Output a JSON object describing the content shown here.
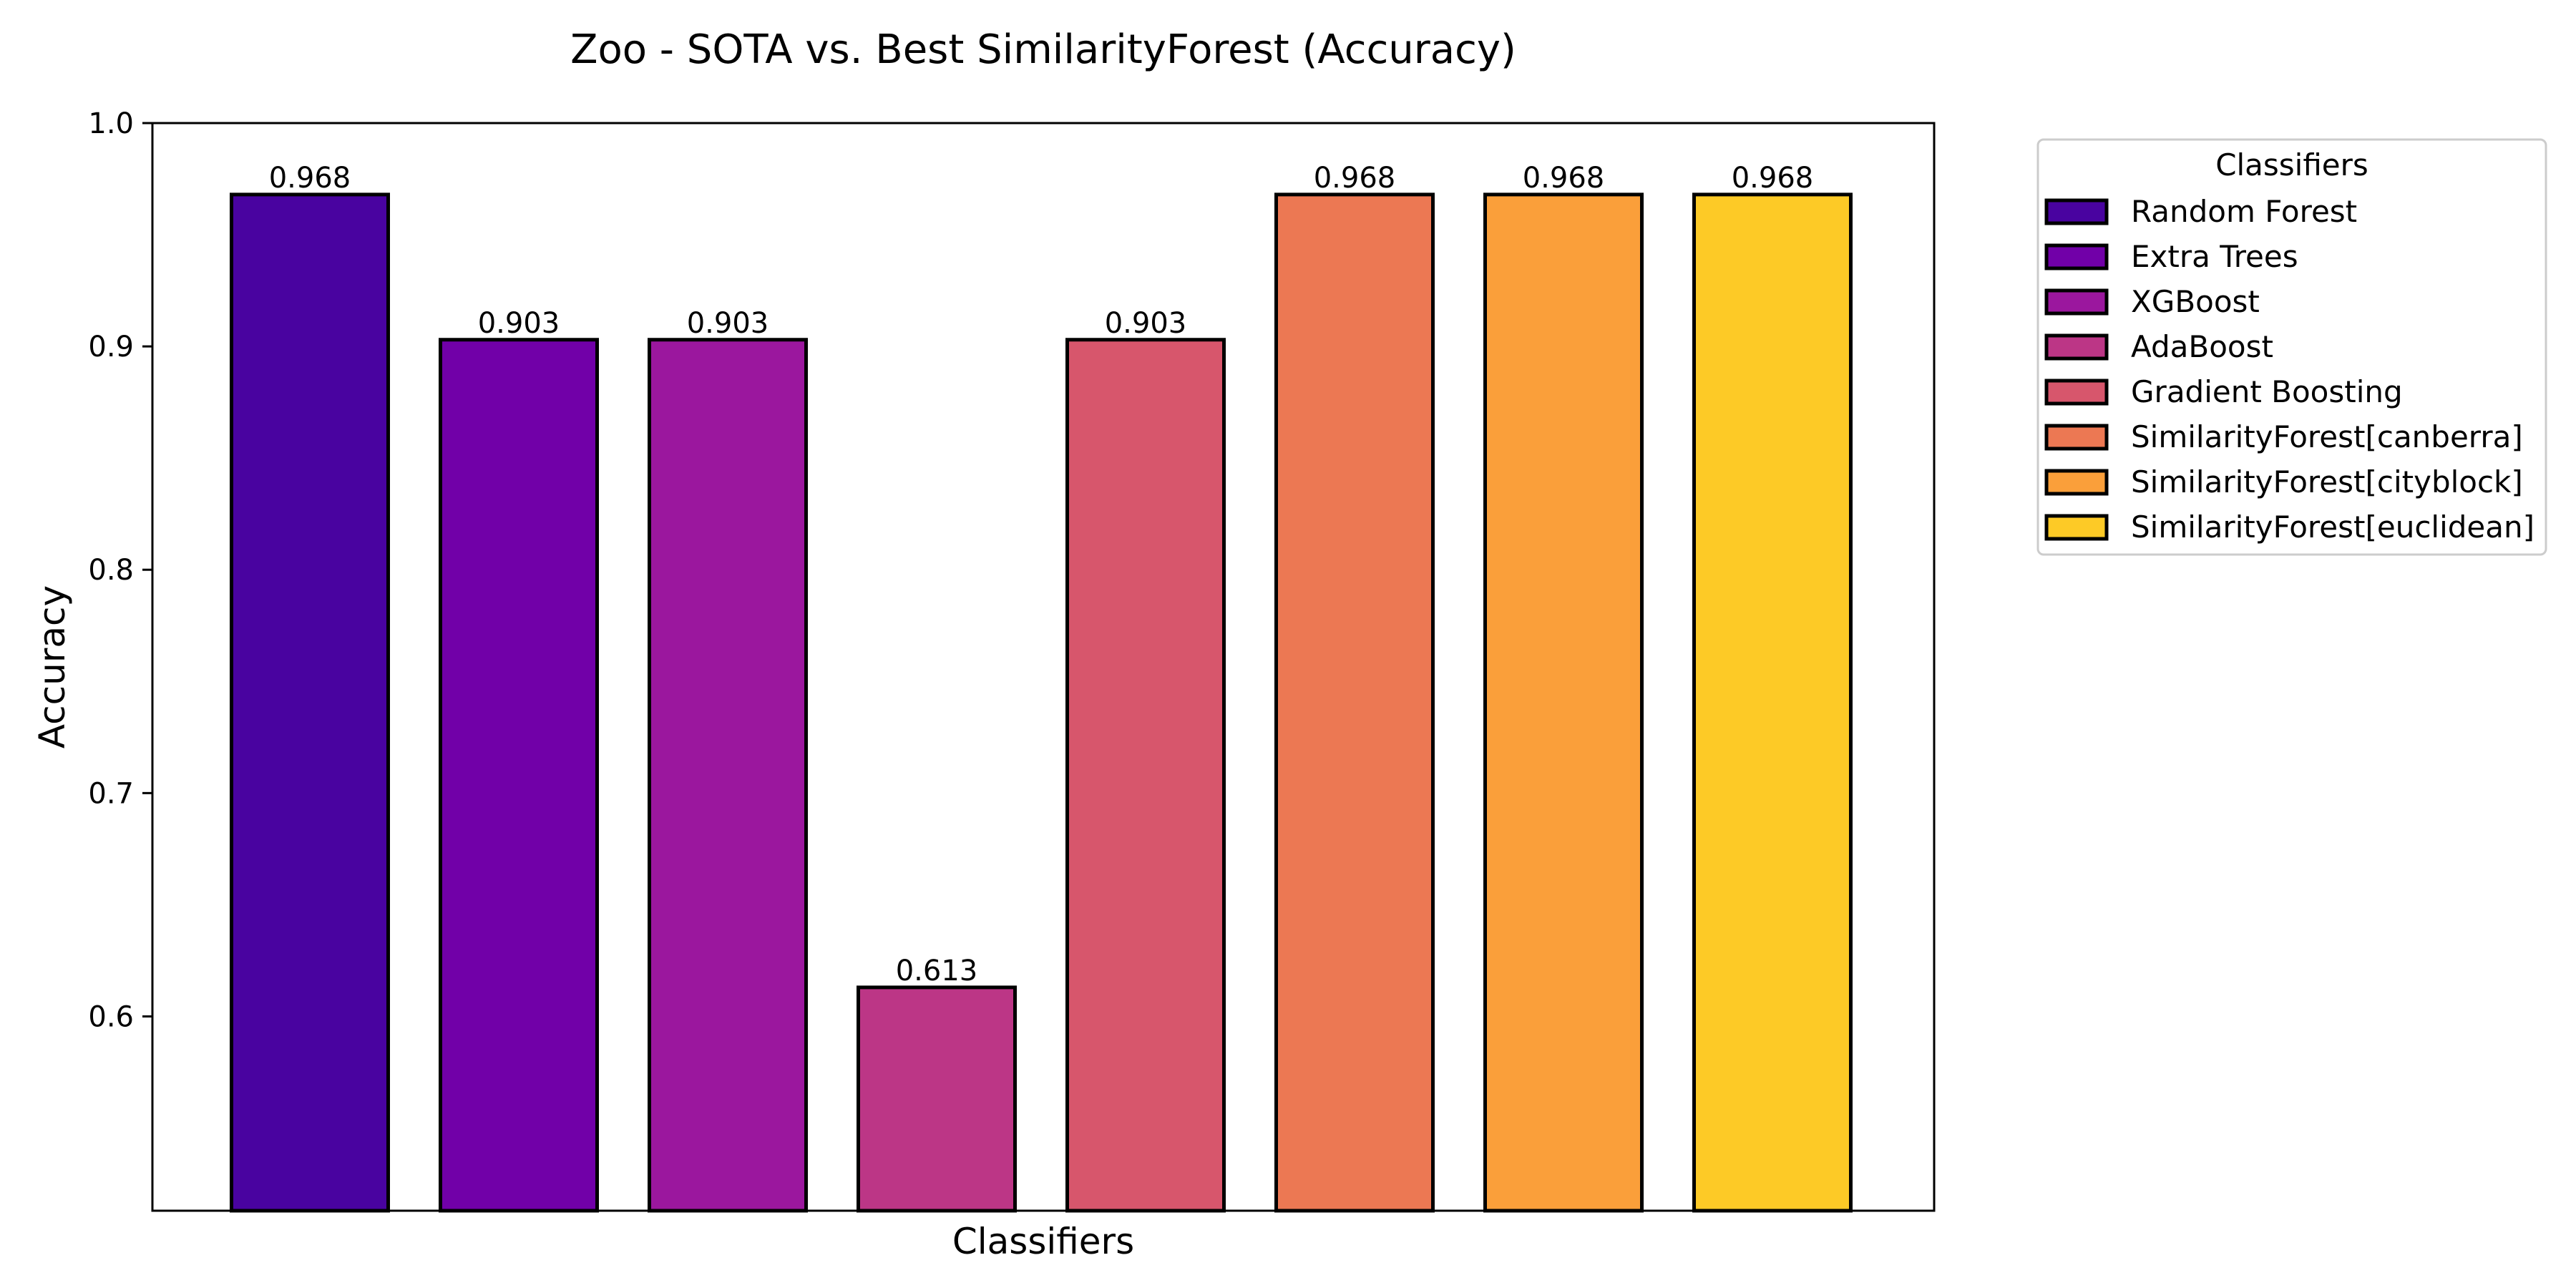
{
  "chart_data": {
    "type": "bar",
    "title": "Zoo - SOTA vs. Best SimilarityForest (Accuracy)",
    "xlabel": "Classifiers",
    "ylabel": "Accuracy",
    "ylim": [
      0.513,
      1.0
    ],
    "yticks": [
      0.6,
      0.7,
      0.8,
      0.9,
      1.0
    ],
    "ytick_labels": [
      "0.6",
      "0.7",
      "0.8",
      "0.9",
      "1.0"
    ],
    "categories": [
      "Random Forest",
      "Extra Trees",
      "XGBoost",
      "AdaBoost",
      "Gradient Boosting",
      "SimilarityForest[canberra]",
      "SimilarityForest[cityblock]",
      "SimilarityForest[euclidean]"
    ],
    "values": [
      0.968,
      0.903,
      0.903,
      0.613,
      0.903,
      0.968,
      0.968,
      0.968
    ],
    "value_labels": [
      "0.968",
      "0.903",
      "0.903",
      "0.613",
      "0.903",
      "0.968",
      "0.968",
      "0.968"
    ],
    "colors": [
      "#4903a0",
      "#7100a8",
      "#9b179e",
      "#bc3686",
      "#d7566c",
      "#ec7853",
      "#fa9f3a",
      "#fdca26"
    ],
    "legend": {
      "title": "Classifiers",
      "placement": "outside-right-top",
      "entries": [
        "Random Forest",
        "Extra Trees",
        "XGBoost",
        "AdaBoost",
        "Gradient Boosting",
        "SimilarityForest[canberra]",
        "SimilarityForest[cityblock]",
        "SimilarityForest[euclidean]"
      ]
    },
    "grid": false
  }
}
